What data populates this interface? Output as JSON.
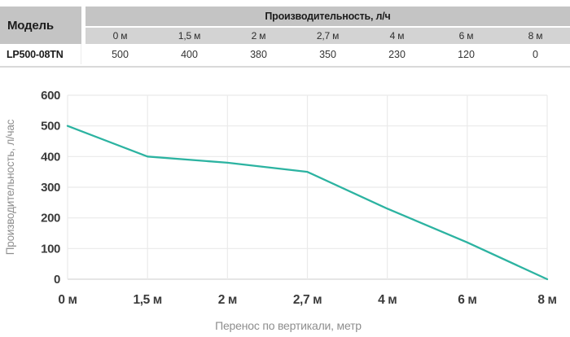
{
  "table": {
    "model_header": "Модель",
    "group_header": "Производительность, л/ч",
    "columns": [
      "0 м",
      "1,5 м",
      "2 м",
      "2,7 м",
      "4 м",
      "6 м",
      "8 м"
    ],
    "rows": [
      {
        "model": "LP500-08TN",
        "values": [
          "500",
          "400",
          "380",
          "350",
          "230",
          "120",
          "0"
        ]
      }
    ]
  },
  "chart_data": {
    "type": "line",
    "categories": [
      "0 м",
      "1,5 м",
      "2 м",
      "2,7 м",
      "4 м",
      "6 м",
      "8 м"
    ],
    "values": [
      500,
      400,
      380,
      350,
      230,
      120,
      0
    ],
    "xlabel": "Перенос по вертикали, метр",
    "ylabel": "Производительность,  л/час",
    "ylim": [
      0,
      600
    ],
    "yticks": [
      0,
      100,
      200,
      300,
      400,
      500,
      600
    ],
    "grid": true,
    "legend_position": "none",
    "line_color": "#2cb3a1",
    "grid_color": "#eaeaea",
    "axis_line_color": "#d8d8d8",
    "tick_color": "#3b3b3b",
    "axis_title_color": "#8e8e8e"
  }
}
